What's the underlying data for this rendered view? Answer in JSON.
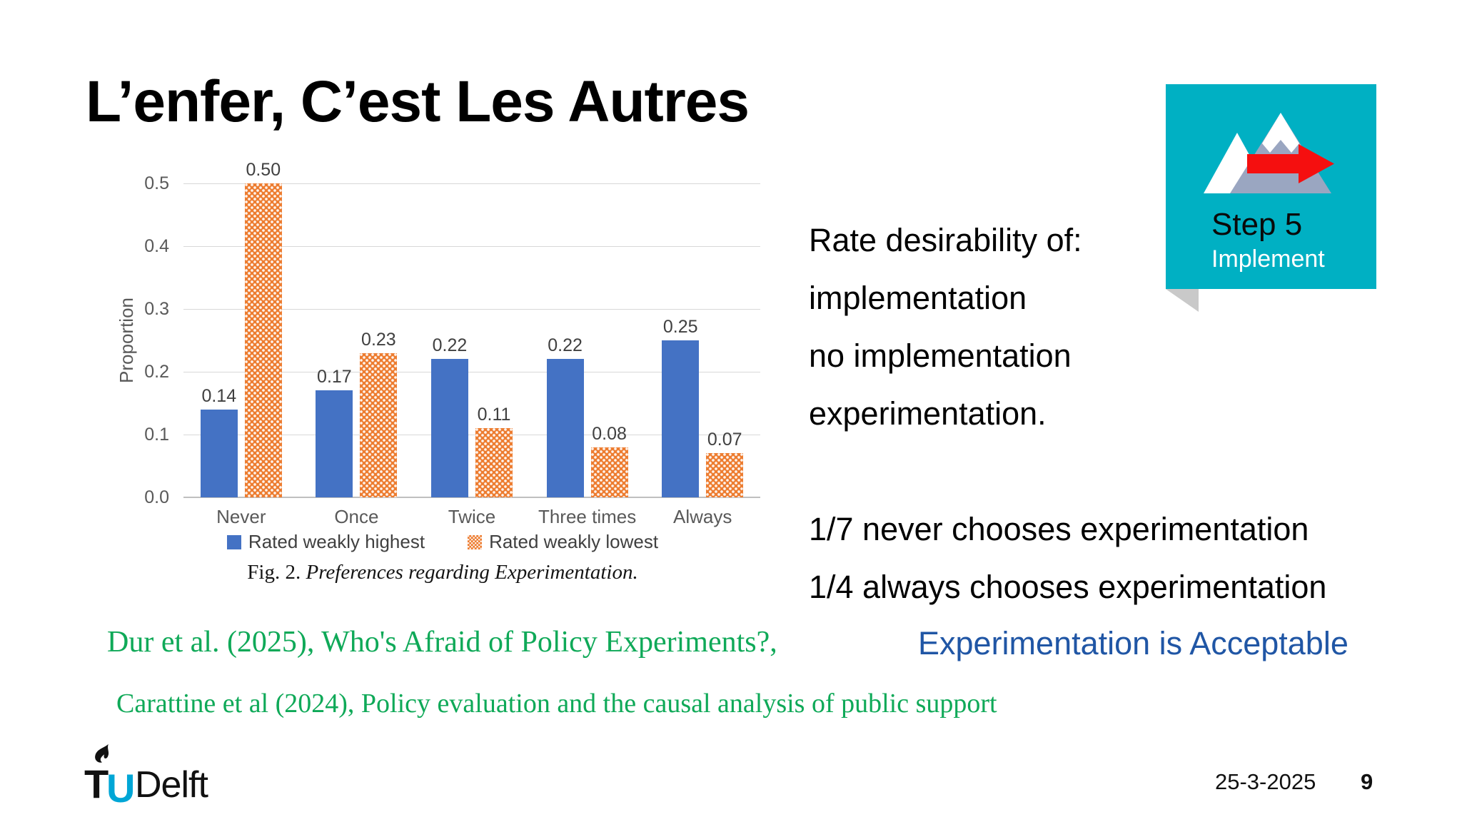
{
  "slide": {
    "title": "L’enfer, C’est Les Autres",
    "footer": {
      "date": "25-3-2025",
      "page_number": "9"
    }
  },
  "chart_data": {
    "type": "bar",
    "figure_caption_prefix": "Fig. 2.",
    "figure_caption": "Preferences regarding Experimentation.",
    "ylabel": "Proportion",
    "ylim": [
      0,
      0.5
    ],
    "yticks": [
      0,
      0.1,
      0.2,
      0.3,
      0.4,
      0.5
    ],
    "ytick_labels": [
      "0.0",
      "0.1",
      "0.2",
      "0.3",
      "0.4",
      "0.5"
    ],
    "grid": true,
    "legend_position": "bottom",
    "categories": [
      "Never",
      "Once",
      "Twice",
      "Three times",
      "Always"
    ],
    "series": [
      {
        "name": "Rated weakly highest",
        "color": "#4472C4",
        "pattern": "solid",
        "values": [
          0.14,
          0.17,
          0.22,
          0.22,
          0.25
        ],
        "labels": [
          "0.14",
          "0.17",
          "0.22",
          "0.22",
          "0.25"
        ]
      },
      {
        "name": "Rated weakly lowest",
        "color": "#ED7D31",
        "pattern": "dots",
        "values": [
          0.5,
          0.23,
          0.11,
          0.08,
          0.07
        ],
        "labels": [
          "0.50",
          "0.23",
          "0.11",
          "0.08",
          "0.07"
        ]
      }
    ]
  },
  "body": {
    "rate_lines": [
      "Rate desirability of:",
      "implementation",
      "no implementation",
      "experimentation."
    ],
    "stat_line_1": "1/7 never chooses experimentation",
    "stat_line_2": "1/4 always chooses experimentation",
    "conclusion": "Experimentation is Acceptable",
    "conclusion_color": "#2056A5"
  },
  "citations": {
    "color": "#0FA958",
    "line_1": "Dur et al. (2025), Who's Afraid of Policy Experiments?,",
    "line_2": "Carattine et al (2024), Policy evaluation and the causal analysis of public support"
  },
  "step_badge": {
    "background": "#00B0C3",
    "step": "Step 5",
    "label": "Implement",
    "icons": [
      "mountain-icon",
      "arrow-right-icon"
    ],
    "arrow_color": "#F50F0F"
  },
  "logo": {
    "t": "T",
    "u": "U",
    "name": "Delft",
    "u_color": "#00A6D6",
    "icon": "flame-icon"
  }
}
